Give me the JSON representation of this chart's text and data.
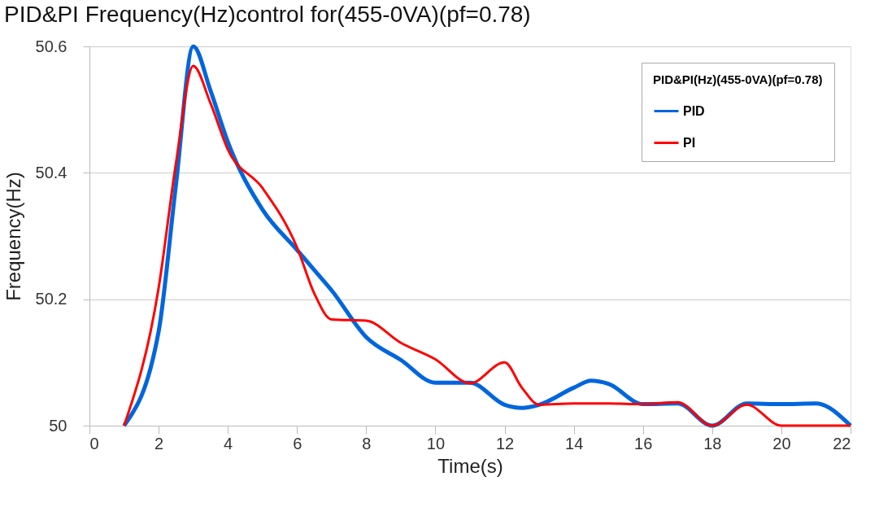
{
  "chart_data": {
    "type": "line",
    "title": "PID&PI Frequency(Hz)control for(455-0VA)(pf=0.78)",
    "xlabel": "Time(s)",
    "ylabel": "Frequency(Hz)",
    "legend_title": "PID&PI(Hz)(455-0VA)(pf=0.78)",
    "x": [
      1,
      2,
      2.5,
      3,
      3.5,
      4,
      5,
      6,
      6.5,
      7,
      8,
      9,
      10,
      11,
      12,
      12.5,
      13,
      14,
      14.5,
      15,
      16,
      17,
      18,
      19,
      20,
      21,
      22
    ],
    "series": [
      {
        "name": "PID",
        "color": "#0066dd",
        "values": [
          50.0,
          50.149,
          50.381,
          50.6,
          50.53,
          50.449,
          50.342,
          50.278,
          50.246,
          50.214,
          50.14,
          50.104,
          50.068,
          50.068,
          50.033,
          50.028,
          50.033,
          50.06,
          50.071,
          50.066,
          50.034,
          50.035,
          50.0,
          50.035,
          50.034,
          50.035,
          50.0
        ]
      },
      {
        "name": "PI",
        "color": "#ff0000",
        "values": [
          50.0,
          50.218,
          50.415,
          50.569,
          50.51,
          50.437,
          50.376,
          50.282,
          50.209,
          50.168,
          50.166,
          50.131,
          50.105,
          50.067,
          50.1,
          50.06,
          50.033,
          50.035,
          50.035,
          50.035,
          50.034,
          50.037,
          50.0,
          50.033,
          50.0,
          50.0,
          50.0
        ]
      }
    ],
    "xlim": [
      0,
      22
    ],
    "xticks": [
      0,
      2,
      4,
      6,
      8,
      10,
      12,
      14,
      16,
      18,
      20,
      22
    ],
    "ylim": [
      50,
      50.6
    ],
    "yticks": [
      50,
      50.2,
      50.4,
      50.6
    ],
    "grid": "y",
    "legend": "top right",
    "marker": "none",
    "line_style": "solid"
  }
}
